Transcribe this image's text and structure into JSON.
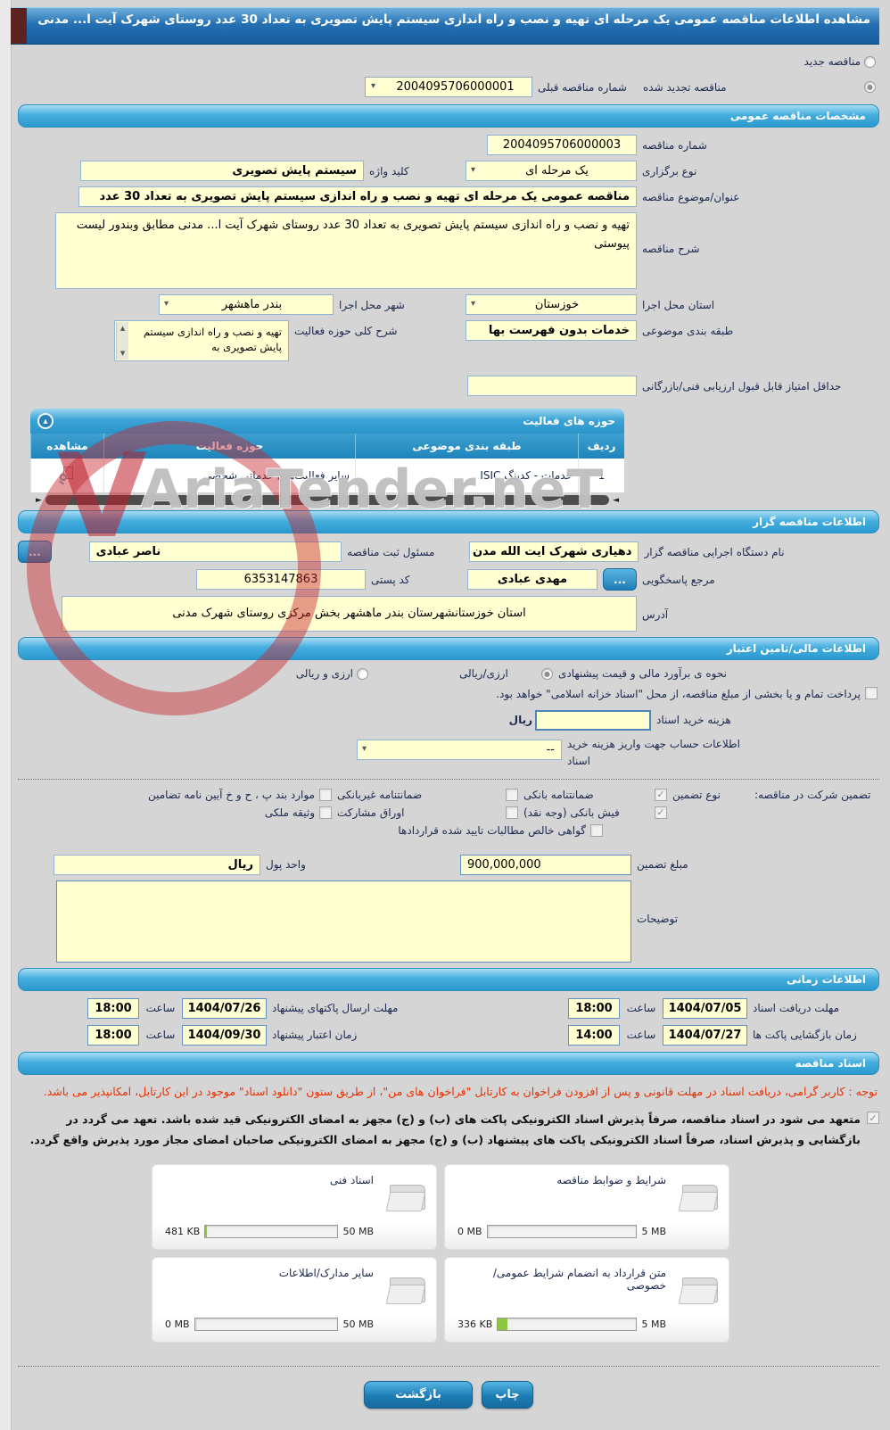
{
  "icons": {
    "dropdown": "▾",
    "collapse": "▴",
    "check": "✓",
    "dot": "●",
    "ellipsis": "...",
    "scroll_left": "◄",
    "scroll_right": "►",
    "scroll_up": "▲",
    "scroll_down": "▼"
  },
  "watermark": {
    "text": "AriaTender.neT",
    "logo_glyph": "V"
  },
  "titlebar": {
    "title": "مشاهده اطلاعات مناقصه عمومی یک مرحله ای تهیه و نصب و راه اندازی سیستم پایش تصویری به تعداد 30 عدد روستای شهرک آیت ا... مدنی"
  },
  "top": {
    "radio_new_label": "مناقصه جدید",
    "radio_new_mark": "",
    "radio_renewed_label": "مناقصه تجدید شده",
    "radio_renewed_mark": "●",
    "prev_label": "شماره مناقصه قبلی",
    "prev_value": "2004095706000001"
  },
  "specs": {
    "header": "مشخصات مناقصه عمومی",
    "tender_no_label": "شماره مناقصه",
    "tender_no_value": "2004095706000003",
    "holding_label": "نوع برگزاری",
    "holding_value": "یک مرحله ای",
    "keyword_label": "کلید واژه",
    "keyword_value": "سیستم پایش تصویری",
    "subject_label": "عنوان/موضوع مناقصه",
    "subject_value": "مناقصه عمومی یک مرحله ای تهیه و نصب و راه اندازی سیستم پایش تصویری به تعداد 30 عدد",
    "desc_label": "شرح مناقصه",
    "desc_value": "تهیه و نصب و راه اندازی سیستم پایش تصویری به تعداد 30 عدد روستای شهرک آیت ا... مدنی مطابق وبندور لیست پیوستی",
    "province_label": "استان محل اجرا",
    "province_value": "خوزستان",
    "city_label": "شهر محل اجرا",
    "city_value": "بندر ماهشهر",
    "class_label": "طبقه بندی موضوعی",
    "class_value": "خدمات بدون فهرست بها",
    "activity_label": "شرح کلی حوزه فعالیت",
    "activity_value": "تهیه و نصب و راه اندازی سیستم پایش تصویری به",
    "min_score_label": "حداقل امتیاز قابل قبول ارزیابی فنی/بازرگانی",
    "min_score_value": ""
  },
  "activity_table": {
    "header": "حوزه های فعالیت",
    "columns": [
      "ردیف",
      "طبقه بندی موضوعی",
      "حوزه فعالیت",
      "مشاهده"
    ],
    "rows": [
      {
        "no": "1",
        "classification": "خدمات - کدینگ ISIC",
        "field": "سایر فعالیت‌های خدماتی شخصی"
      }
    ]
  },
  "tenderer": {
    "header": "اطلاعات مناقصه گزار",
    "agency_label": "نام دستگاه اجرایی مناقصه گزار",
    "agency_value": "دهیاری شهرک ایت الله مدن",
    "registrar_label": "مسئول ثبت مناقصه",
    "registrar_value": "ناصر عبادی",
    "responder_label": "مرجع پاسخگویی",
    "responder_value": "مهدی عبادی",
    "postal_label": "کد پستی",
    "postal_value": "6353147863",
    "address_label": "آدرس",
    "address_value": "استان خوزستانشهرستان بندر ماهشهر بخش مرکزی روستای شهرک مدنی"
  },
  "financial": {
    "header": "اطلاعات مالی/تامین اعتبار",
    "estimate_label": "نحوه ی برآورد مالی و قیمت پیشنهادی",
    "estimate_options": [
      {
        "label": "ارزی/ریالی",
        "mark": "●"
      },
      {
        "label": "ارزی و ریالی",
        "mark": ""
      }
    ],
    "treasury_mark": "",
    "treasury_text": "پرداخت تمام و یا بخشی از مبلغ مناقصه، از محل \"اسناد خزانه اسلامی\" خواهد بود.",
    "doc_cost_label": "هزینه خرید اسناد",
    "doc_cost_value": "",
    "doc_cost_unit": "ریال",
    "account_label": "اطلاعات حساب جهت واریز هزینه خرید اسناد",
    "account_value": "--",
    "guarantee_label": "تضمین شرکت در مناقصه:",
    "guarantee_type_label": "نوع تضمین",
    "guarantee_options": [
      {
        "label": "ضمانتنامه بانکی",
        "mark": "✓"
      },
      {
        "label": "ضمانتنامه غیربانکی",
        "mark": ""
      },
      {
        "label": "موارد بند پ ، ح و خ آیین نامه تضامین",
        "mark": ""
      },
      {
        "label": "فیش بانکی (وجه نقد)",
        "mark": "✓"
      },
      {
        "label": "اوراق مشارکت",
        "mark": ""
      },
      {
        "label": "وثیقه ملکی",
        "mark": ""
      },
      {
        "label": "گواهی خالص مطالبات تایید شده قراردادها",
        "mark": ""
      }
    ],
    "amount_label": "مبلغ تضمین",
    "amount_value": "900,000,000",
    "currency_label": "واحد پول",
    "currency_value": "ریال",
    "notes_label": "توضیحات",
    "notes_value": ""
  },
  "timing": {
    "header": "اطلاعات زمانی",
    "hour_label": "ساعت",
    "rows": [
      {
        "label": "مهلت دریافت اسناد",
        "date": "1404/07/05",
        "time": "18:00"
      },
      {
        "label": "مهلت ارسال پاکتهای پیشنهاد",
        "date": "1404/07/26",
        "time": "18:00"
      },
      {
        "label": "زمان بازگشایی پاکت ها",
        "date": "1404/07/27",
        "time": "14:00"
      },
      {
        "label": "زمان اعتبار پیشنهاد",
        "date": "1404/09/30",
        "time": "18:00"
      }
    ]
  },
  "documents": {
    "header": "اسناد مناقصه",
    "notice": "توجه : کاربر گرامی، دریافت اسناد در مهلت قانونی و پس از افزودن فراخوان به کارتابل \"فراخوان های من\"، از طریق ستون \"دانلود اسناد\" موجود در این کارتابل، امکانپذیر می باشد.",
    "commitment_mark": "✓",
    "commitment_text": "متعهد می شود در اسناد مناقصه، صرفاً پذیرش اسناد الکترونیکی پاکت های (ب) و (ج) مجهز به امضای الکترونیکی قید شده باشد. تعهد می گردد در بازگشایی و پذیرش اسناد، صرفاً اسناد الکترونیکی پاکت های پیشنهاد (ب) و (ج) مجهز به امضای الکترونیکی صاحبان امضای مجاز مورد پذیرش واقع گردد.",
    "files": [
      {
        "label": "شرایط و ضوابط مناقصه",
        "size": "0 MB",
        "max": "5 MB",
        "pct": 0
      },
      {
        "label": "اسناد فنی",
        "size": "481 KB",
        "max": "50 MB",
        "pct": 1
      },
      {
        "label": "متن قرارداد به انضمام شرایط عمومی/خصوصی",
        "size": "336 KB",
        "max": "5 MB",
        "pct": 7
      },
      {
        "label": "سایر مدارک/اطلاعات",
        "size": "0 MB",
        "max": "50 MB",
        "pct": 0
      }
    ]
  },
  "footer": {
    "back": "بازگشت",
    "print": "چاپ"
  }
}
